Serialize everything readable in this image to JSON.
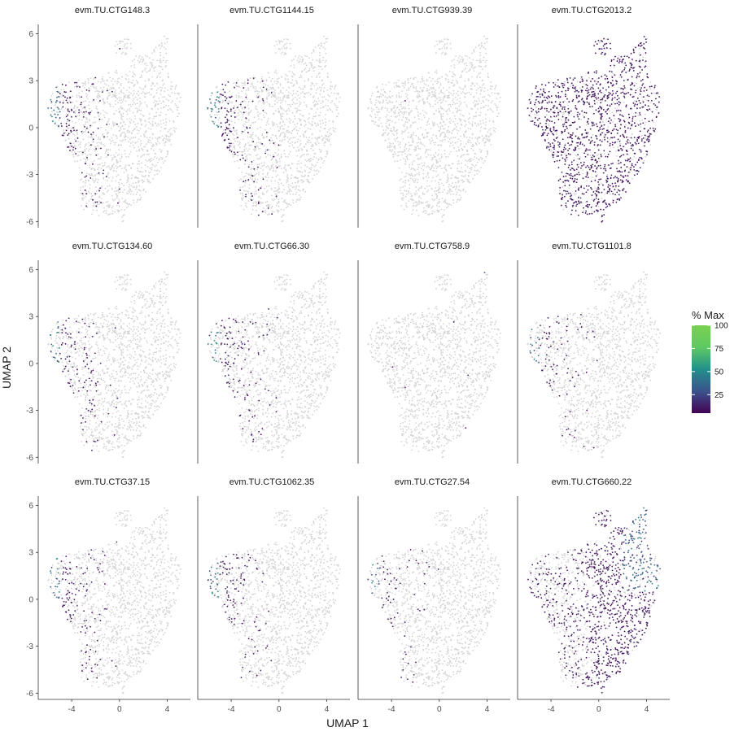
{
  "chart_data": {
    "type": "scatter",
    "xlabel": "UMAP 1",
    "ylabel": "UMAP 2",
    "xlim": [
      -6.8,
      5.6
    ],
    "ylim": [
      -6.4,
      6.6
    ],
    "x_ticks": [
      -4,
      0,
      4
    ],
    "x_tick_labels": [
      "-4",
      "0",
      "4"
    ],
    "y_ticks": [
      6,
      3,
      0,
      -3,
      -6
    ],
    "y_tick_labels": [
      "6",
      "3",
      "0",
      "-3",
      "-6"
    ],
    "background_color": "#d3d3d3",
    "legend": {
      "title": "% Max",
      "position": "right",
      "ticks": [
        100,
        75,
        50,
        25
      ],
      "tick_labels": [
        "100",
        "75",
        "50",
        "25"
      ],
      "colormap": "viridis",
      "colors": [
        "#440154",
        "#3b528b",
        "#21908c",
        "#5ec962",
        "#7ad151"
      ]
    },
    "panels": [
      {
        "title": "evm.TU.CTG148.3",
        "pattern": "left",
        "density": 0.55
      },
      {
        "title": "evm.TU.CTG1144.15",
        "pattern": "left",
        "density": 0.55
      },
      {
        "title": "evm.TU.CTG939.39",
        "pattern": "none",
        "density": 0.02
      },
      {
        "title": "evm.TU.CTG2013.2",
        "pattern": "broad",
        "density": 0.9
      },
      {
        "title": "evm.TU.CTG134.60",
        "pattern": "left",
        "density": 0.45
      },
      {
        "title": "evm.TU.CTG66.30",
        "pattern": "left",
        "density": 0.45
      },
      {
        "title": "evm.TU.CTG758.9",
        "pattern": "top",
        "density": 0.05
      },
      {
        "title": "evm.TU.CTG1101.8",
        "pattern": "left",
        "density": 0.3
      },
      {
        "title": "evm.TU.CTG37.15",
        "pattern": "left",
        "density": 0.45
      },
      {
        "title": "evm.TU.CTG1062.35",
        "pattern": "left",
        "density": 0.4
      },
      {
        "title": "evm.TU.CTG27.54",
        "pattern": "left",
        "density": 0.25
      },
      {
        "title": "evm.TU.CTG660.22",
        "pattern": "right",
        "density": 0.85
      }
    ]
  }
}
